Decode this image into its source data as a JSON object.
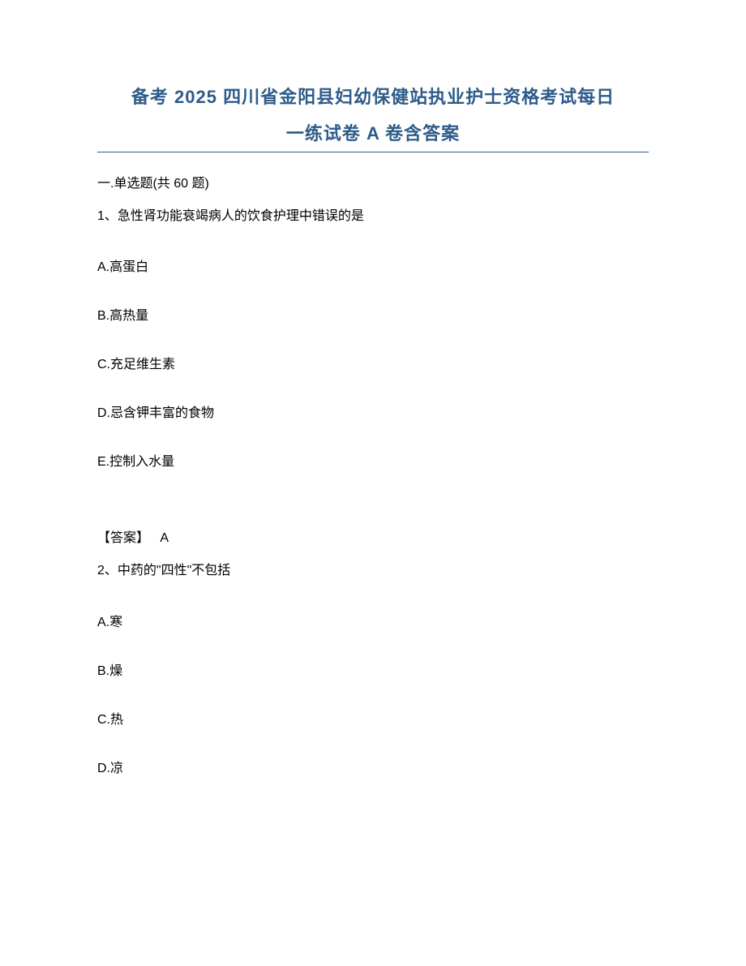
{
  "title_line1": "备考 2025 四川省金阳县妇幼保健站执业护士资格考试每日",
  "title_line2": "一练试卷 A 卷含答案",
  "section_header": "一.单选题(共 60 题)",
  "colors": {
    "title": "#2e5c8a",
    "text": "#000000",
    "background": "#ffffff",
    "divider": "#2e5c8a"
  },
  "typography": {
    "title_fontsize": 22,
    "body_fontsize": 16,
    "title_weight": "bold",
    "body_weight": "normal"
  },
  "questions": [
    {
      "number": "1、",
      "text": "急性肾功能衰竭病人的饮食护理中错误的是",
      "options": {
        "A": "A.高蛋白",
        "B": "B.高热量",
        "C": "C.充足维生素",
        "D": "D.忌含钾丰富的食物",
        "E": "E.控制入水量"
      },
      "answer_label": "【答案】",
      "answer_value": "A"
    },
    {
      "number": "2、",
      "text": "中药的\"四性\"不包括",
      "options": {
        "A": "A.寒",
        "B": "B.燥",
        "C": "C.热",
        "D": "D.凉"
      }
    }
  ]
}
